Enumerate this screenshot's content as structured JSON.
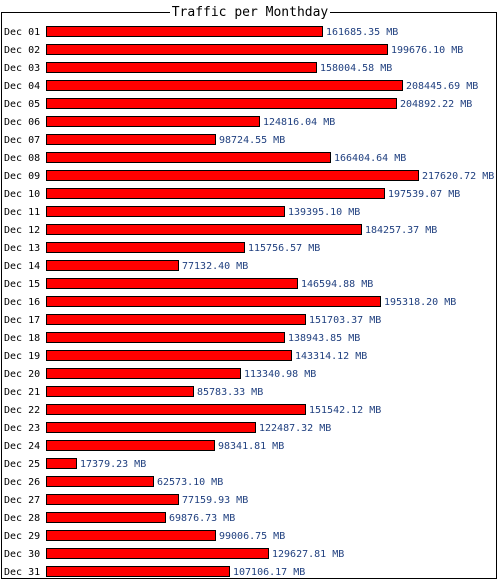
{
  "chart_data": {
    "type": "bar",
    "orientation": "horizontal",
    "title": "Traffic per Monthday",
    "unit": "MB",
    "bar_color": "#ff0000",
    "label_color": "#1f3f7f",
    "categories": [
      "Dec 01",
      "Dec 02",
      "Dec 03",
      "Dec 04",
      "Dec 05",
      "Dec 06",
      "Dec 07",
      "Dec 08",
      "Dec 09",
      "Dec 10",
      "Dec 11",
      "Dec 12",
      "Dec 13",
      "Dec 14",
      "Dec 15",
      "Dec 16",
      "Dec 17",
      "Dec 18",
      "Dec 19",
      "Dec 20",
      "Dec 21",
      "Dec 22",
      "Dec 23",
      "Dec 24",
      "Dec 25",
      "Dec 26",
      "Dec 27",
      "Dec 28",
      "Dec 29",
      "Dec 30",
      "Dec 31"
    ],
    "values": [
      161685.35,
      199676.1,
      158004.58,
      208445.69,
      204892.22,
      124816.04,
      98724.55,
      166404.64,
      217620.72,
      197539.07,
      139395.1,
      184257.37,
      115756.57,
      77132.4,
      146594.88,
      195318.2,
      151703.37,
      138943.85,
      143314.12,
      113340.98,
      85783.33,
      151542.12,
      122487.32,
      98341.81,
      17379.23,
      62573.1,
      77159.93,
      69876.73,
      99006.75,
      129627.81,
      107106.17
    ],
    "value_labels": [
      "161685.35 MB",
      "199676.10 MB",
      "158004.58 MB",
      "208445.69 MB",
      "204892.22 MB",
      "124816.04 MB",
      "98724.55 MB",
      "166404.64 MB",
      "217620.72 MB",
      "197539.07 MB",
      "139395.10 MB",
      "184257.37 MB",
      "115756.57 MB",
      "77132.40 MB",
      "146594.88 MB",
      "195318.20 MB",
      "151703.37 MB",
      "138943.85 MB",
      "143314.12 MB",
      "113340.98 MB",
      "85783.33 MB",
      "151542.12 MB",
      "122487.32 MB",
      "98341.81 MB",
      "17379.23 MB",
      "62573.10 MB",
      "77159.93 MB",
      "69876.73 MB",
      "99006.75 MB",
      "129627.81 MB",
      "107106.17 MB"
    ],
    "grid": false,
    "legend": "none"
  }
}
